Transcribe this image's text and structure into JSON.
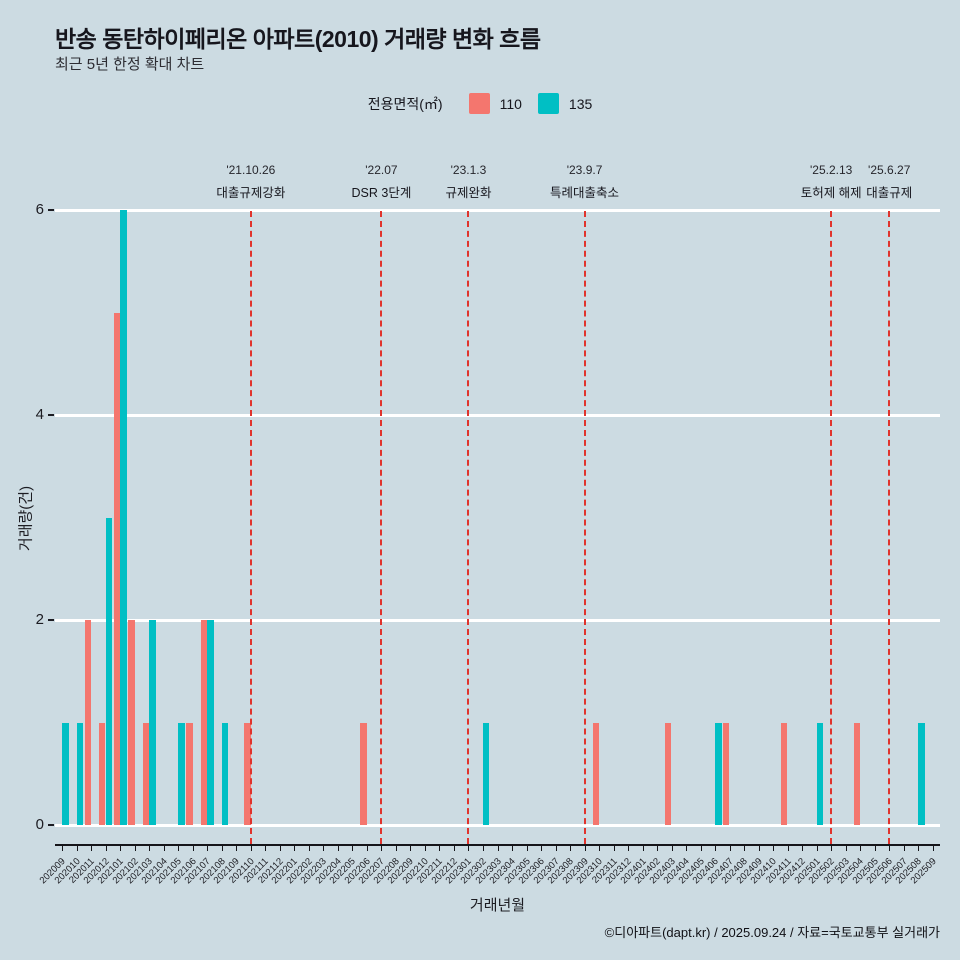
{
  "page": {
    "background": "#ccdbe2",
    "title": "반송 동탄하이페리온 아파트(2010) 거래량 변화 흐름",
    "subtitle": "최근 5년 한정 확대 차트",
    "footer": "©디아파트(dapt.kr) / 2025.09.24 / 자료=국토교통부 실거래가"
  },
  "legend": {
    "label": "전용면적(㎡)",
    "items": [
      {
        "name": "110",
        "color": "#F4766E"
      },
      {
        "name": "135",
        "color": "#00BFC4"
      }
    ]
  },
  "chart_data": {
    "type": "bar",
    "bar_mode": "grouped",
    "title": "반송 동탄하이페리온 아파트(2010) 거래량 변화 흐름",
    "subtitle": "최근 5년 한정 확대 차트",
    "xlabel": "거래년월",
    "ylabel": "거래량(건)",
    "ylim": [
      0,
      6
    ],
    "yticks": [
      0,
      2,
      4,
      6
    ],
    "grid": "horizontal-white",
    "legend_position": "top-center",
    "categories": [
      "202009",
      "202010",
      "202011",
      "202012",
      "202101",
      "202102",
      "202103",
      "202104",
      "202105",
      "202106",
      "202107",
      "202108",
      "202109",
      "202110",
      "202111",
      "202112",
      "202201",
      "202202",
      "202203",
      "202204",
      "202205",
      "202206",
      "202207",
      "202208",
      "202209",
      "202210",
      "202211",
      "202212",
      "202301",
      "202302",
      "202303",
      "202304",
      "202305",
      "202306",
      "202307",
      "202308",
      "202309",
      "202310",
      "202311",
      "202312",
      "202401",
      "202402",
      "202403",
      "202404",
      "202405",
      "202406",
      "202407",
      "202408",
      "202409",
      "202410",
      "202411",
      "202412",
      "202501",
      "202502",
      "202503",
      "202504",
      "202505",
      "202506",
      "202507",
      "202508",
      "202509"
    ],
    "series": [
      {
        "name": "110",
        "color": "#F4766E",
        "values": [
          0,
          0,
          2,
          1,
          5,
          2,
          1,
          0,
          0,
          1,
          2,
          0,
          0,
          1,
          0,
          0,
          0,
          0,
          0,
          0,
          0,
          1,
          0,
          0,
          0,
          0,
          0,
          0,
          0,
          0,
          0,
          0,
          0,
          0,
          0,
          0,
          0,
          1,
          0,
          0,
          0,
          0,
          1,
          0,
          0,
          0,
          1,
          0,
          0,
          0,
          1,
          0,
          0,
          0,
          0,
          1,
          0,
          0,
          0,
          0,
          0
        ]
      },
      {
        "name": "135",
        "color": "#00BFC4",
        "values": [
          1,
          1,
          0,
          3,
          6,
          0,
          2,
          0,
          1,
          0,
          2,
          1,
          0,
          0,
          0,
          0,
          0,
          0,
          0,
          0,
          0,
          0,
          0,
          0,
          0,
          0,
          0,
          0,
          0,
          1,
          0,
          0,
          0,
          0,
          0,
          0,
          0,
          0,
          0,
          0,
          0,
          0,
          0,
          0,
          0,
          1,
          0,
          0,
          0,
          0,
          0,
          0,
          1,
          0,
          0,
          0,
          0,
          0,
          0,
          1,
          0
        ]
      }
    ],
    "event_line_color": "#E0332C",
    "event_lines": [
      {
        "date": "'21.10.26",
        "label": "대출규제강화",
        "month": "202110"
      },
      {
        "date": "'22.07",
        "label": "DSR 3단계",
        "month": "202207"
      },
      {
        "date": "'23.1.3",
        "label": "규제완화",
        "month": "202301"
      },
      {
        "date": "'23.9.7",
        "label": "특례대출축소",
        "month": "202309"
      },
      {
        "date": "'25.2.13",
        "label": "토허제 해제",
        "month": "202502"
      },
      {
        "date": "'25.6.27",
        "label": "대출규제",
        "month": "202506"
      }
    ]
  }
}
